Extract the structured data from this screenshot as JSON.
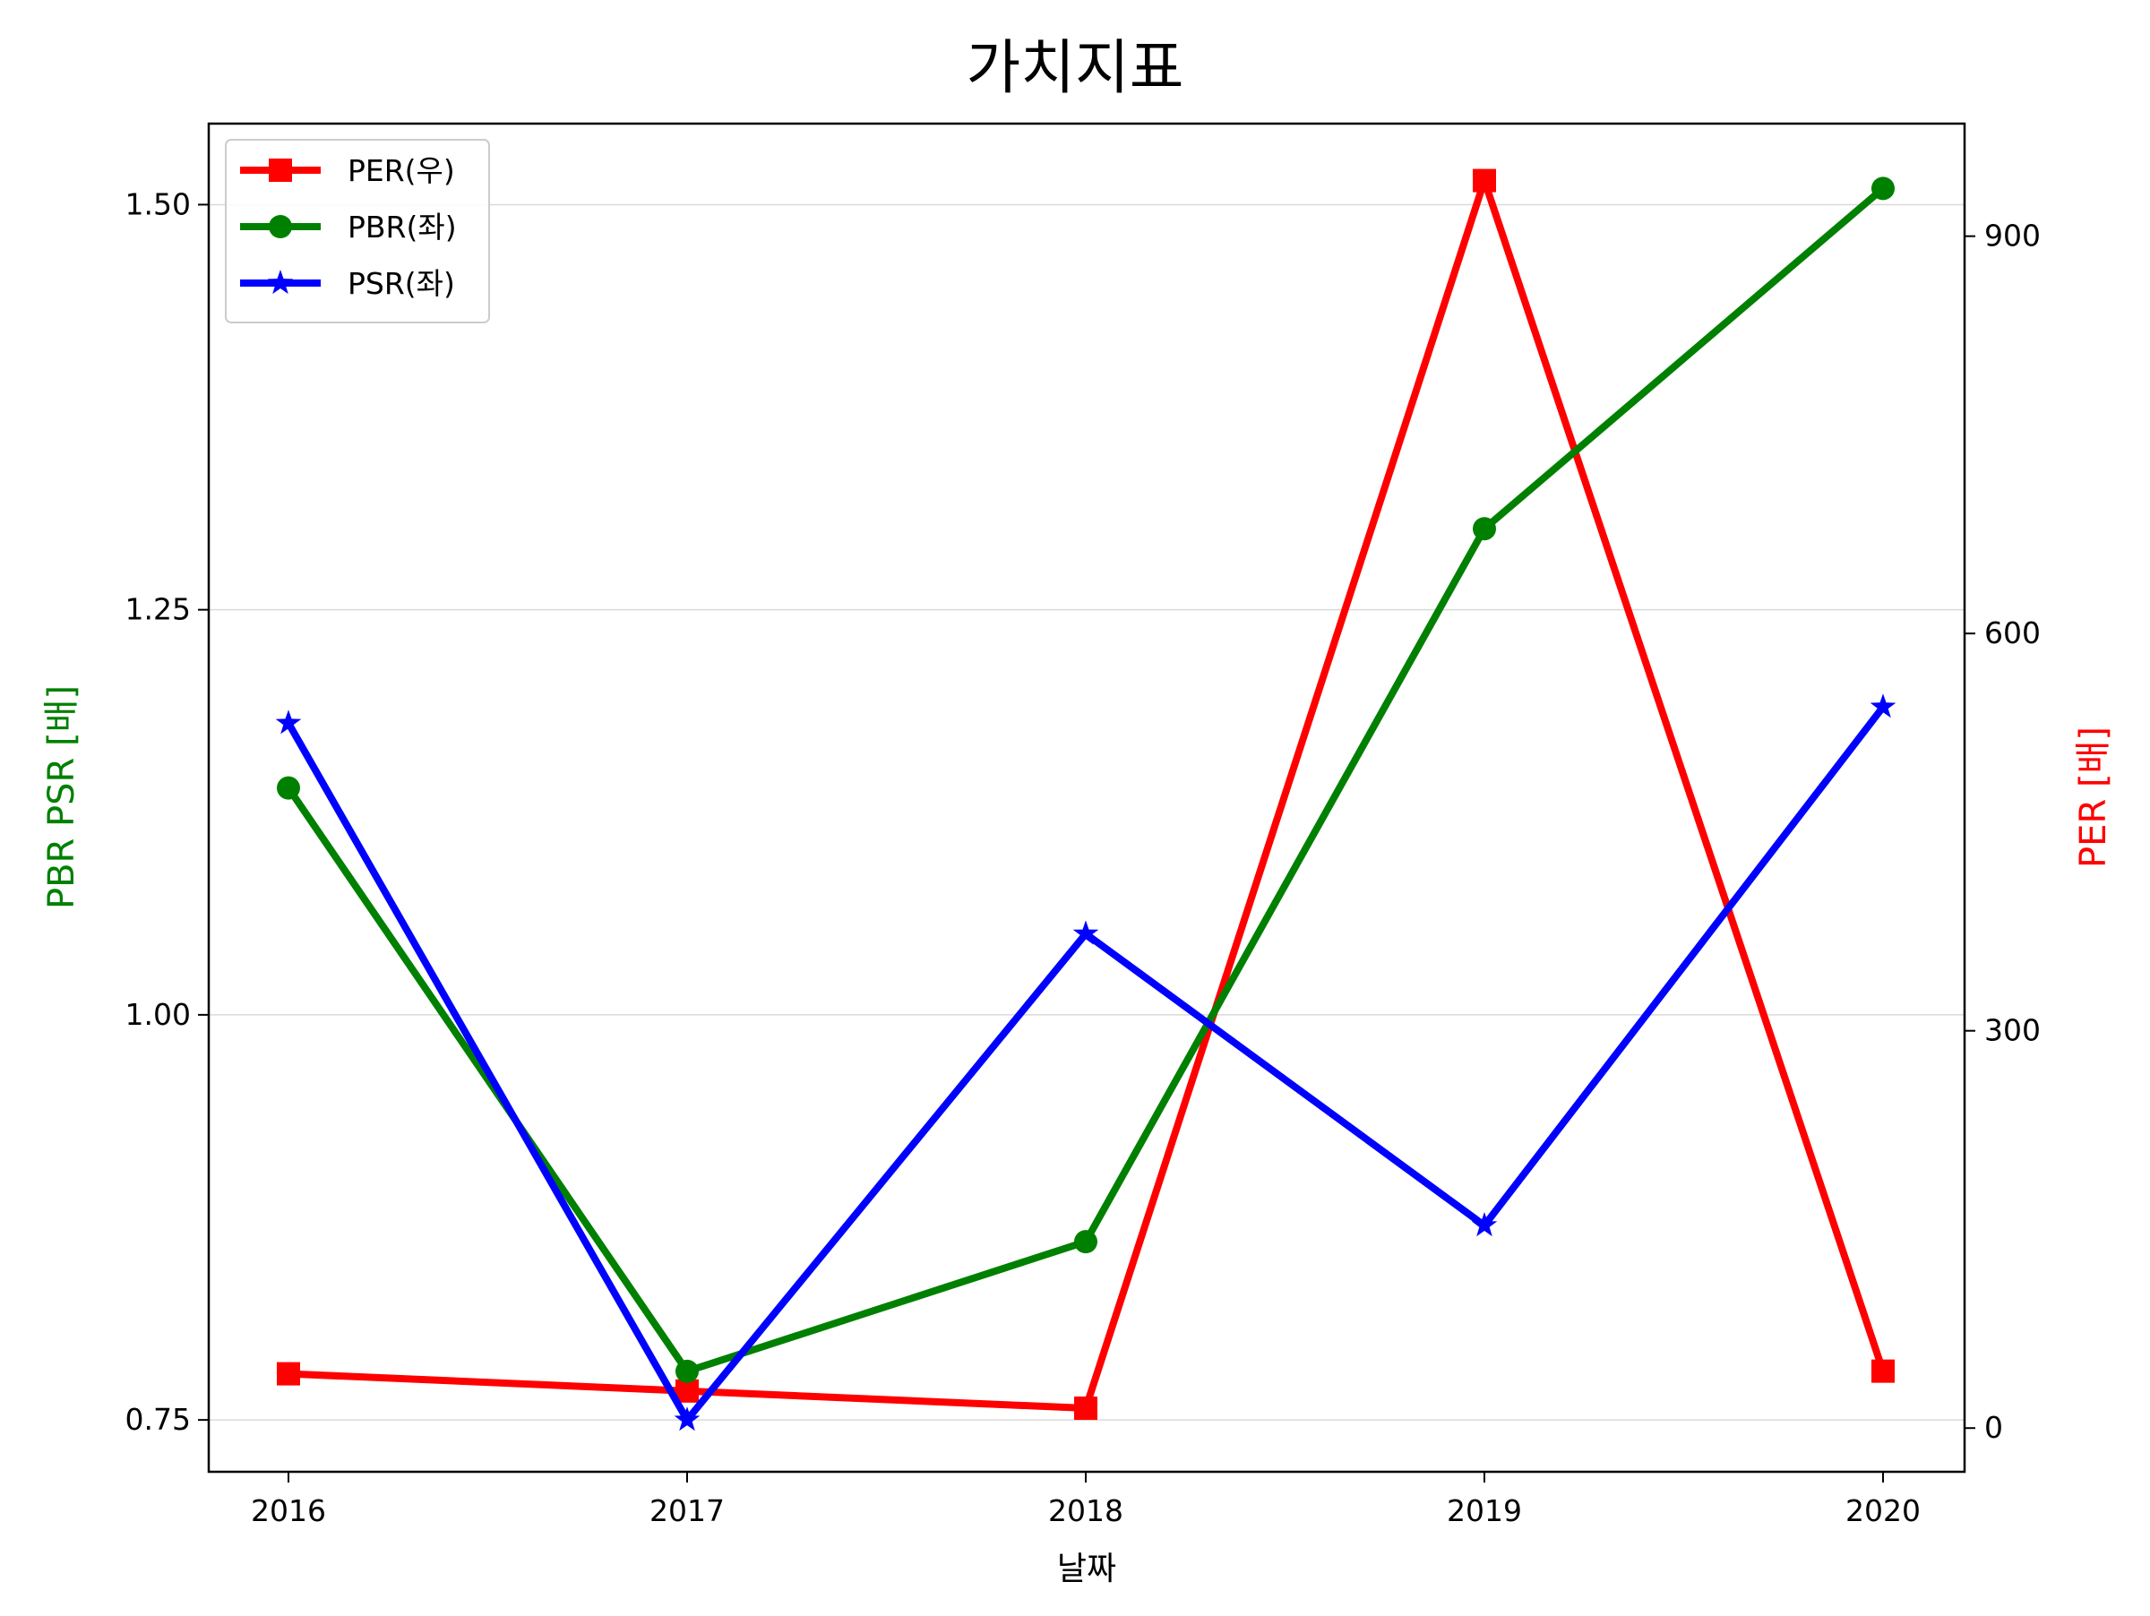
{
  "chart_data": {
    "type": "line",
    "title": "가치지표",
    "xlabel": "날짜",
    "ylabel_left": "PBR PSR [배]",
    "ylabel_right": "PER [배]",
    "categories": [
      "2016",
      "2017",
      "2018",
      "2019",
      "2020"
    ],
    "left_axis": {
      "ylim": [
        0.718,
        1.55
      ],
      "ticks": [
        0.75,
        1.0,
        1.25,
        1.5
      ],
      "tick_labels": [
        "0.75",
        "1.00",
        "1.25",
        "1.50"
      ]
    },
    "right_axis": {
      "ylim": [
        -33,
        985
      ],
      "ticks": [
        0,
        300,
        600,
        900
      ],
      "tick_labels": [
        "0",
        "300",
        "600",
        "900"
      ]
    },
    "series": [
      {
        "name": "PER(우)",
        "axis": "right",
        "color": "#ff0000",
        "marker": "square",
        "values": [
          41,
          28,
          15,
          942,
          43
        ]
      },
      {
        "name": "PBR(좌)",
        "axis": "left",
        "color": "#008000",
        "marker": "circle",
        "values": [
          1.14,
          0.78,
          0.86,
          1.3,
          1.51
        ]
      },
      {
        "name": "PSR(좌)",
        "axis": "left",
        "color": "#0000ff",
        "marker": "star",
        "values": [
          1.18,
          0.75,
          1.05,
          0.87,
          1.19
        ]
      }
    ],
    "grid": "horizontal",
    "legend_position": "top-left",
    "colors": {
      "left_label": "#008000",
      "right_label": "#ff0000",
      "grid": "#d9d9d9"
    }
  }
}
